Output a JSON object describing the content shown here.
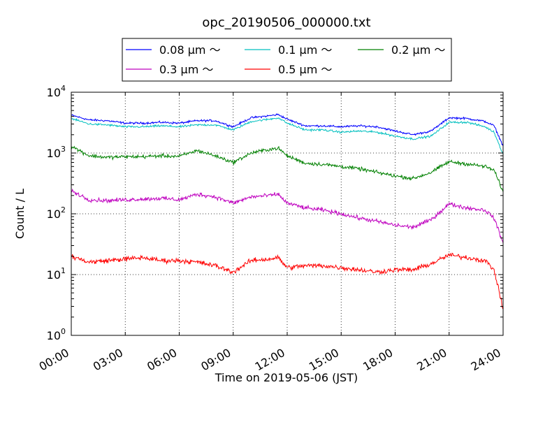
{
  "chart_data": {
    "type": "line",
    "title": "opc_20190506_000000.txt",
    "xlabel": "Time on 2019-05-06 (JST)",
    "ylabel": "Count / L",
    "yscale": "log",
    "xlim": [
      "00:00",
      "24:00"
    ],
    "ylim": [
      1,
      10000
    ],
    "grid": true,
    "legend_position": "top-center",
    "x_ticks": [
      "00:00",
      "03:00",
      "06:00",
      "09:00",
      "12:00",
      "15:00",
      "18:00",
      "21:00",
      "24:00"
    ],
    "y_ticks": [
      {
        "base": "10",
        "exp": "0"
      },
      {
        "base": "10",
        "exp": "1"
      },
      {
        "base": "10",
        "exp": "2"
      },
      {
        "base": "10",
        "exp": "3"
      },
      {
        "base": "10",
        "exp": "4"
      }
    ],
    "x": [
      "00:00",
      "01:00",
      "02:00",
      "03:00",
      "04:00",
      "05:00",
      "06:00",
      "07:00",
      "08:00",
      "09:00",
      "10:00",
      "11:00",
      "11:30",
      "12:00",
      "13:00",
      "14:00",
      "15:00",
      "16:00",
      "17:00",
      "18:00",
      "19:00",
      "20:00",
      "21:00",
      "22:00",
      "23:00",
      "23:30",
      "24:00"
    ],
    "series": [
      {
        "name": "0.08 µm ～",
        "color": "#0000ff",
        "values": [
          4200,
          3500,
          3400,
          3100,
          3100,
          3200,
          3100,
          3400,
          3400,
          2700,
          3800,
          4100,
          4300,
          3600,
          2800,
          2800,
          2700,
          2800,
          2700,
          2300,
          2000,
          2300,
          3800,
          3700,
          3300,
          2800,
          1300
        ]
      },
      {
        "name": "0.1 µm ～",
        "color": "#00bfbf",
        "values": [
          3700,
          3000,
          2900,
          2700,
          2700,
          2800,
          2700,
          2900,
          2900,
          2400,
          3300,
          3600,
          3800,
          3100,
          2400,
          2400,
          2200,
          2300,
          2200,
          1900,
          1700,
          1900,
          3200,
          3200,
          2700,
          2200,
          950
        ]
      },
      {
        "name": "0.2 µm ～",
        "color": "#008000",
        "values": [
          1300,
          900,
          850,
          870,
          870,
          900,
          880,
          1100,
          900,
          700,
          1000,
          1150,
          1200,
          900,
          680,
          650,
          600,
          550,
          480,
          420,
          380,
          480,
          720,
          660,
          600,
          520,
          230
        ]
      },
      {
        "name": "0.3 µm ～",
        "color": "#bf00bf",
        "values": [
          240,
          170,
          165,
          170,
          175,
          180,
          170,
          210,
          190,
          150,
          190,
          200,
          210,
          150,
          125,
          115,
          100,
          85,
          75,
          65,
          60,
          80,
          145,
          125,
          115,
          85,
          33
        ]
      },
      {
        "name": "0.5 µm ～",
        "color": "#ff0000",
        "values": [
          20,
          16,
          17,
          18,
          19,
          17,
          17,
          16,
          14,
          11,
          17,
          18,
          19,
          13,
          14,
          14,
          13,
          12,
          11,
          12,
          12,
          15,
          21,
          19,
          17,
          12,
          2.7
        ]
      }
    ]
  }
}
